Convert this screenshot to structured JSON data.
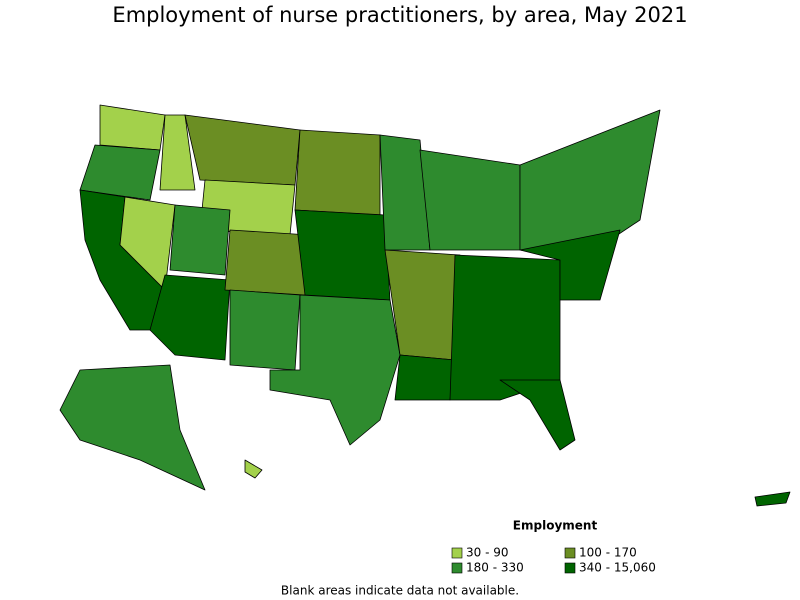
{
  "title": "Employment of nurse practitioners, by area, May 2021",
  "legend": {
    "title": "Employment",
    "items": [
      {
        "label": "30 - 90",
        "color": "#a3d14b"
      },
      {
        "label": "100 - 170",
        "color": "#6b8e23"
      },
      {
        "label": "180 - 330",
        "color": "#2e8b2e"
      },
      {
        "label": "340 - 15,060",
        "color": "#006400"
      }
    ]
  },
  "footnote": "Blank areas indicate data not available."
}
